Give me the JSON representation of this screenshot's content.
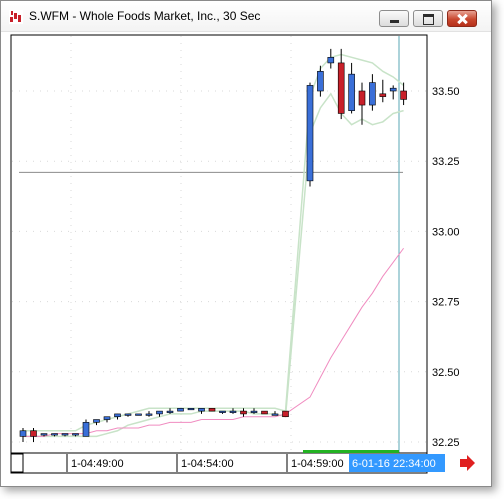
{
  "window": {
    "title": "S.WFM - Whole Foods Market, Inc., 30 Sec",
    "icon": "chart-app-icon"
  },
  "controls": {
    "minimize": "minimize-icon",
    "maximize": "maximize-icon",
    "close": "close-icon"
  },
  "colors": {
    "up_candle": "#3a6fd8",
    "down_candle": "#c8202a",
    "band": "#c8e3c8",
    "moving_average": "#f08cc0",
    "cursor_line": "#5aa7b4",
    "crosshair": "#8c8c8c",
    "time_highlight": "#3399ff",
    "volume_bar": "#22b222",
    "scroll_arrow": "#e02020"
  },
  "chart_data": {
    "type": "candlestick",
    "ylim": [
      32.21,
      33.68
    ],
    "price_ticks": [
      "33.50",
      "33.25",
      "33.00",
      "32.75",
      "32.50",
      "32.25"
    ],
    "time_ticks": [
      "1-04:49:00",
      "1-04:54:00",
      "1-04:59:00"
    ],
    "cursor_time": "6-01-16 22:34:00",
    "crosshair_price": 33.21,
    "candles": [
      {
        "o": 32.27,
        "h": 32.3,
        "l": 32.25,
        "c": 32.29
      },
      {
        "o": 32.29,
        "h": 32.3,
        "l": 32.25,
        "c": 32.27
      },
      {
        "o": 32.28,
        "h": 32.28,
        "l": 32.27,
        "c": 32.28
      },
      {
        "o": 32.28,
        "h": 32.28,
        "l": 32.27,
        "c": 32.28
      },
      {
        "o": 32.28,
        "h": 32.28,
        "l": 32.27,
        "c": 32.28
      },
      {
        "o": 32.28,
        "h": 32.28,
        "l": 32.27,
        "c": 32.28
      },
      {
        "o": 32.27,
        "h": 32.33,
        "l": 32.27,
        "c": 32.32
      },
      {
        "o": 32.32,
        "h": 32.33,
        "l": 32.31,
        "c": 32.33
      },
      {
        "o": 32.33,
        "h": 32.34,
        "l": 32.32,
        "c": 32.34
      },
      {
        "o": 32.34,
        "h": 32.35,
        "l": 32.33,
        "c": 32.35
      },
      {
        "o": 32.35,
        "h": 32.35,
        "l": 32.34,
        "c": 32.35
      },
      {
        "o": 32.35,
        "h": 32.35,
        "l": 32.35,
        "c": 32.35
      },
      {
        "o": 32.35,
        "h": 32.36,
        "l": 32.34,
        "c": 32.35
      },
      {
        "o": 32.35,
        "h": 32.36,
        "l": 32.34,
        "c": 32.36
      },
      {
        "o": 32.36,
        "h": 32.37,
        "l": 32.35,
        "c": 32.36
      },
      {
        "o": 32.36,
        "h": 32.37,
        "l": 32.36,
        "c": 32.37
      },
      {
        "o": 32.37,
        "h": 32.37,
        "l": 32.37,
        "c": 32.37
      },
      {
        "o": 32.36,
        "h": 32.37,
        "l": 32.35,
        "c": 32.37
      },
      {
        "o": 32.37,
        "h": 32.37,
        "l": 32.36,
        "c": 32.36
      },
      {
        "o": 32.36,
        "h": 32.36,
        "l": 32.35,
        "c": 32.36
      },
      {
        "o": 32.36,
        "h": 32.37,
        "l": 32.35,
        "c": 32.36
      },
      {
        "o": 32.36,
        "h": 32.37,
        "l": 32.34,
        "c": 32.35
      },
      {
        "o": 32.36,
        "h": 32.37,
        "l": 32.35,
        "c": 32.36
      },
      {
        "o": 32.36,
        "h": 32.36,
        "l": 32.35,
        "c": 32.35
      },
      {
        "o": 32.35,
        "h": 32.36,
        "l": 32.35,
        "c": 32.35
      },
      {
        "o": 32.36,
        "h": 32.36,
        "l": 32.34,
        "c": 32.34
      },
      {
        "o": 33.18,
        "h": 33.53,
        "l": 33.16,
        "c": 33.52
      },
      {
        "o": 33.5,
        "h": 33.59,
        "l": 33.48,
        "c": 33.57
      },
      {
        "o": 33.6,
        "h": 33.65,
        "l": 33.58,
        "c": 33.62
      },
      {
        "o": 33.6,
        "h": 33.65,
        "l": 33.4,
        "c": 33.42
      },
      {
        "o": 33.43,
        "h": 33.6,
        "l": 33.42,
        "c": 33.56
      },
      {
        "o": 33.5,
        "h": 33.53,
        "l": 33.38,
        "c": 33.45
      },
      {
        "o": 33.45,
        "h": 33.56,
        "l": 33.43,
        "c": 33.53
      },
      {
        "o": 33.49,
        "h": 33.54,
        "l": 33.46,
        "c": 33.48
      },
      {
        "o": 33.5,
        "h": 33.52,
        "l": 33.47,
        "c": 33.51
      },
      {
        "o": 33.5,
        "h": 33.53,
        "l": 33.45,
        "c": 33.47
      }
    ],
    "band_upper": [
      32.29,
      32.29,
      32.29,
      32.29,
      32.29,
      32.29,
      32.31,
      32.32,
      32.33,
      32.34,
      32.35,
      32.36,
      32.37,
      32.37,
      32.37,
      32.37,
      32.37,
      32.37,
      32.37,
      32.37,
      32.37,
      32.37,
      32.37,
      32.37,
      32.37,
      32.36,
      33.48,
      33.58,
      33.62,
      33.63,
      33.62,
      33.61,
      33.6,
      33.57,
      33.55,
      33.52
    ],
    "band_lower": [
      32.27,
      32.27,
      32.27,
      32.27,
      32.27,
      32.27,
      32.27,
      32.27,
      32.28,
      32.29,
      32.31,
      32.32,
      32.33,
      32.34,
      32.35,
      32.35,
      32.35,
      32.36,
      32.36,
      32.36,
      32.36,
      32.36,
      32.35,
      32.35,
      32.35,
      32.34,
      33.35,
      33.44,
      33.49,
      33.42,
      33.38,
      33.4,
      33.38,
      33.39,
      33.42,
      33.43
    ],
    "moving_average": [
      32.27,
      32.27,
      32.27,
      32.28,
      32.28,
      32.28,
      32.28,
      32.29,
      32.29,
      32.3,
      32.3,
      32.3,
      32.31,
      32.31,
      32.32,
      32.32,
      32.32,
      32.33,
      32.33,
      32.33,
      32.33,
      32.34,
      32.34,
      32.34,
      32.34,
      32.35,
      32.41,
      32.48,
      32.55,
      32.61,
      32.67,
      32.73,
      32.78,
      32.84,
      32.89,
      32.94
    ]
  }
}
